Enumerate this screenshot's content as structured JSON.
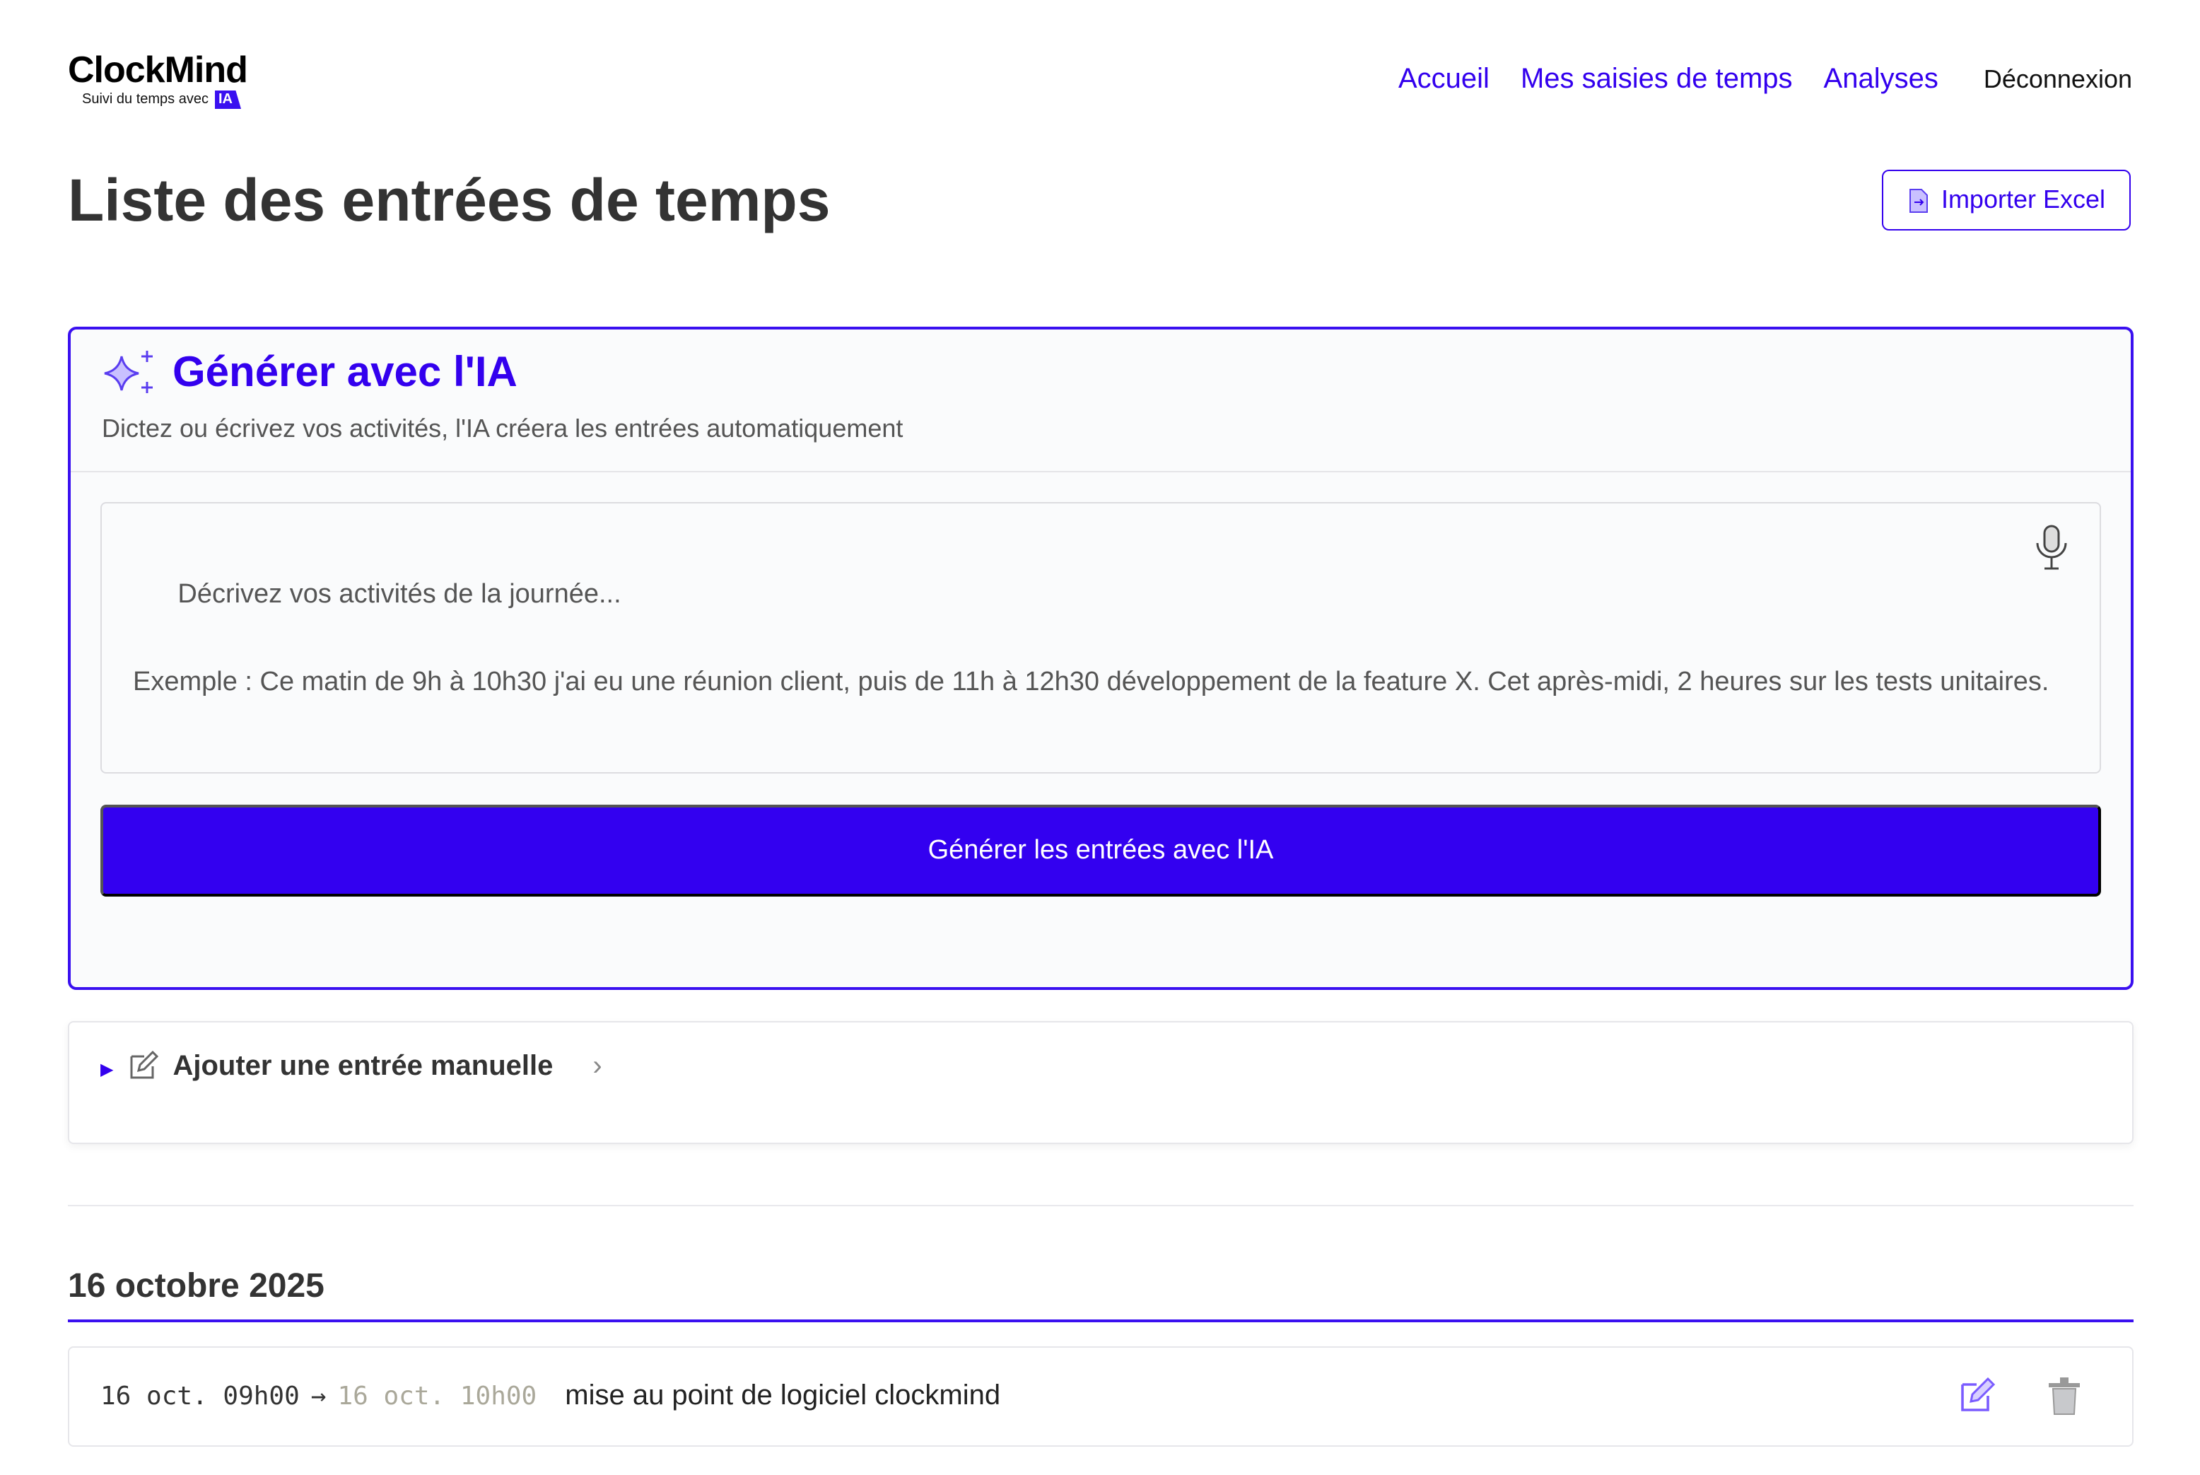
{
  "brand": {
    "name": "ClockMind",
    "tagline": "Suivi du temps avec",
    "badge": "IA"
  },
  "nav": {
    "items": [
      "Accueil",
      "Mes saisies de temps",
      "Analyses"
    ],
    "logout": "Déconnexion"
  },
  "page": {
    "title": "Liste des entrées de temps",
    "import_label": "Importer Excel"
  },
  "ai": {
    "title": "Générer avec l'IA",
    "subtitle": "Dictez ou écrivez vos activités, l'IA créera les entrées automatiquement",
    "placeholder": "Décrivez vos activités de la journée...\n\nExemple : Ce matin de 9h à 10h30 j'ai eu une réunion client, puis de 11h à 12h30 développement de la feature X. Cet après-midi, 2 heures sur les tests unitaires.",
    "button": "Générer les entrées avec l'IA"
  },
  "manual": {
    "label": "Ajouter une entrée manuelle"
  },
  "groups": [
    {
      "date": "16 octobre 2025",
      "entries": [
        {
          "start": "16 oct. 09h00",
          "arrow": "→",
          "end": "16 oct. 10h00",
          "description": "mise au point de logiciel clockmind"
        }
      ]
    }
  ],
  "colors": {
    "accent": "#3300ee",
    "button": "#3300f0"
  }
}
